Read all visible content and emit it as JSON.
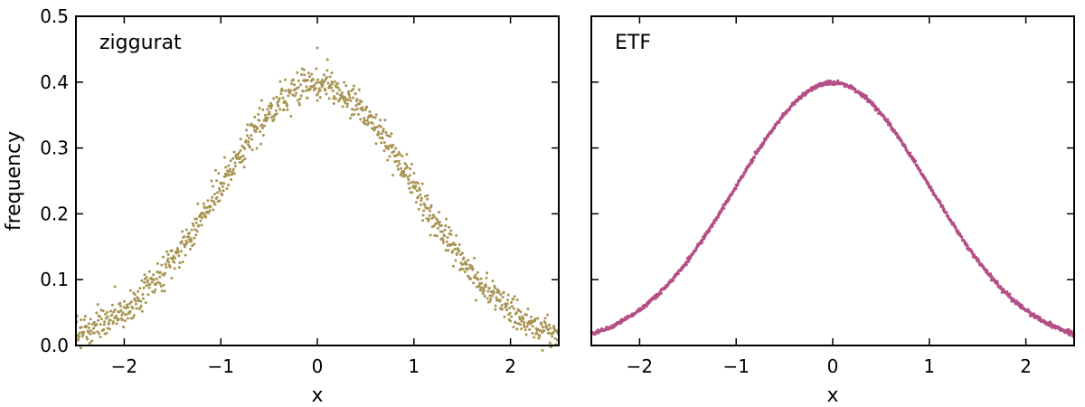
{
  "chart_data": [
    {
      "type": "scatter",
      "label": "ziggurat",
      "xlabel": "x",
      "ylabel": "frequency",
      "xlim": [
        -2.5,
        2.5
      ],
      "ylim": [
        0.0,
        0.5
      ],
      "xticks": [
        -2,
        -1,
        0,
        1,
        2
      ],
      "xtick_labels": [
        "−2",
        "−1",
        "0",
        "1",
        "2"
      ],
      "yticks": [
        0.0,
        0.1,
        0.2,
        0.3,
        0.4,
        0.5
      ],
      "ytick_labels": [
        "0.0",
        "0.1",
        "0.2",
        "0.3",
        "0.4",
        "0.5"
      ],
      "color": "#a89452",
      "distribution": "standard normal density",
      "n_points": 1000,
      "noise": 0.012,
      "outliers": [
        {
          "x": 0.0,
          "y": 0.452
        },
        {
          "x": 0.0,
          "y": 0.372
        },
        {
          "x": 0.15,
          "y": 0.414
        }
      ]
    },
    {
      "type": "scatter",
      "label": "ETF",
      "xlabel": "x",
      "ylabel": "",
      "xlim": [
        -2.5,
        2.5
      ],
      "ylim": [
        0.0,
        0.5
      ],
      "xticks": [
        -2,
        -1,
        0,
        1,
        2
      ],
      "xtick_labels": [
        "−2",
        "−1",
        "0",
        "1",
        "2"
      ],
      "yticks": [
        0.0,
        0.1,
        0.2,
        0.3,
        0.4,
        0.5
      ],
      "ytick_labels": [],
      "color": "#b44f87",
      "distribution": "standard normal density",
      "n_points": 1000,
      "noise": 0.0015,
      "outliers": []
    }
  ]
}
